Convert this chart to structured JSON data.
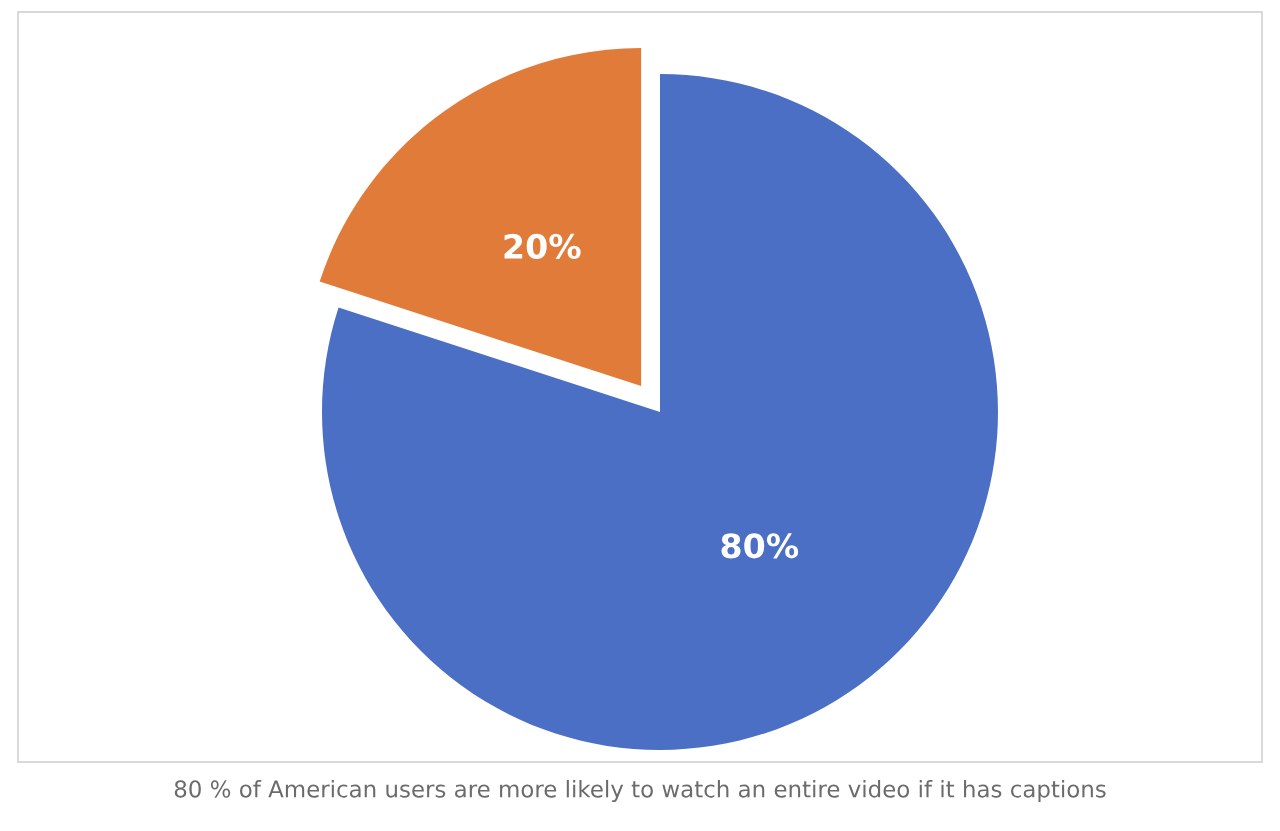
{
  "chart_data": {
    "type": "pie",
    "categories": [
      null,
      null
    ],
    "values": [
      80,
      20
    ],
    "colors": [
      "#4a6fc4",
      "#e07b39"
    ],
    "value_labels": [
      "80%",
      "20%"
    ],
    "annotations": [
      "80 % of American users are more likely to watch an entire video if it has captions"
    ]
  }
}
